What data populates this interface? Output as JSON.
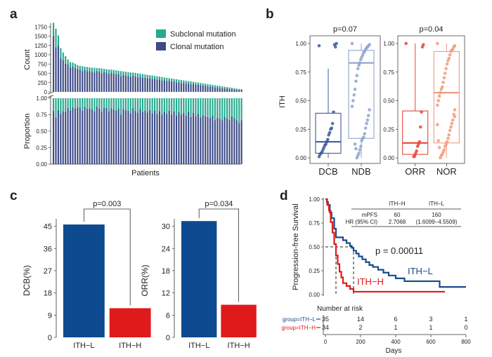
{
  "chart_data": [
    {
      "panel": "a",
      "type": "bar",
      "xlabel": "Patients",
      "legend": [
        {
          "label": "Subclonal mutation",
          "color": "#26a98e"
        },
        {
          "label": "Clonal mutation",
          "color": "#3c4a86"
        }
      ],
      "top": {
        "ylabel": "Count",
        "yticks": [
          0,
          250,
          500,
          750,
          1000,
          1250,
          1500,
          1750
        ],
        "ylim": [
          0,
          1850
        ],
        "total": [
          1860,
          1700,
          1520,
          1180,
          1060,
          960,
          870,
          800,
          790,
          760,
          720,
          700,
          690,
          680,
          670,
          660,
          650,
          650,
          640,
          640,
          630,
          620,
          610,
          600,
          600,
          590,
          580,
          570,
          560,
          550,
          540,
          530,
          520,
          520,
          510,
          500,
          490,
          480,
          470,
          460,
          450,
          440,
          430,
          420,
          410,
          400,
          390,
          380,
          370,
          360,
          350,
          340,
          330,
          320,
          310,
          300,
          290,
          280,
          270,
          260,
          250,
          240,
          230,
          220,
          210,
          200,
          190,
          180,
          170,
          160,
          150,
          140,
          130,
          120,
          110,
          100,
          90,
          80,
          75
        ],
        "clonal": [
          1500,
          1200,
          1250,
          900,
          850,
          760,
          740,
          650,
          680,
          640,
          620,
          600,
          560,
          590,
          560,
          560,
          540,
          520,
          560,
          540,
          500,
          530,
          520,
          480,
          510,
          490,
          470,
          480,
          420,
          460,
          440,
          430,
          400,
          440,
          410,
          390,
          410,
          380,
          380,
          360,
          370,
          340,
          350,
          320,
          330,
          300,
          310,
          290,
          300,
          270,
          280,
          250,
          260,
          240,
          240,
          220,
          230,
          200,
          210,
          190,
          190,
          170,
          170,
          160,
          150,
          140,
          140,
          120,
          120,
          110,
          100,
          100,
          90,
          80,
          80,
          70,
          60,
          50,
          50
        ]
      },
      "bottom": {
        "ylabel": "Proportion",
        "yticks": [
          "0.00",
          "0.25",
          "0.50",
          "0.75",
          "1.00"
        ],
        "ylim": [
          0,
          1
        ]
      }
    },
    {
      "panel": "b",
      "type": "boxplot",
      "ylabel": "ITH",
      "yticks": [
        "0.00",
        "0.25",
        "0.50",
        "0.75",
        "1.00"
      ],
      "ylim": [
        0,
        1
      ],
      "groups": [
        {
          "label": "DCB",
          "color": "#3d5a99",
          "q1": 0.04,
          "median": 0.14,
          "q3": 0.39,
          "whislo": 0.0,
          "whishi": 0.78,
          "points": [
            0.98,
            1.0,
            0.97,
            0.99,
            0.4,
            0.3,
            0.26,
            0.25,
            0.22,
            0.2,
            0.16,
            0.14,
            0.12,
            0.11,
            0.09,
            0.07,
            0.05,
            0.04,
            0.03,
            0.01
          ]
        },
        {
          "label": "NDB",
          "color": "#8fa3cc",
          "q1": 0.17,
          "median": 0.83,
          "q3": 0.94,
          "whislo": 0.0,
          "whishi": 1.0,
          "points": [
            1.0,
            0.99,
            0.98,
            0.97,
            0.96,
            0.95,
            0.93,
            0.92,
            0.9,
            0.88,
            0.86,
            0.83,
            0.81,
            0.78,
            0.72,
            0.67,
            0.6,
            0.55,
            0.5,
            0.45,
            0.42,
            0.37,
            0.33,
            0.3,
            0.26,
            0.21,
            0.18,
            0.17,
            0.15,
            0.1,
            0.07,
            0.04,
            0.02,
            0.0,
            0.08,
            0.12
          ]
        }
      ],
      "p_value": "p=0.07"
    },
    {
      "panel": "b",
      "type": "boxplot",
      "ylabel": "",
      "yticks": [
        "0.00",
        "0.25",
        "0.50",
        "0.75",
        "1.00"
      ],
      "ylim": [
        0,
        1
      ],
      "groups": [
        {
          "label": "ORR",
          "color": "#e8473a",
          "q1": 0.03,
          "median": 0.13,
          "q3": 0.41,
          "whislo": 0.0,
          "whishi": 1.0,
          "points": [
            1.0,
            0.99,
            0.97,
            0.4,
            0.27,
            0.14,
            0.12,
            0.1,
            0.06,
            0.04,
            0.02,
            0.01
          ]
        },
        {
          "label": "NOR",
          "color": "#f09a80",
          "q1": 0.13,
          "median": 0.57,
          "q3": 0.93,
          "whislo": 0.0,
          "whishi": 1.0,
          "points": [
            1.0,
            0.98,
            0.97,
            0.95,
            0.94,
            0.93,
            0.9,
            0.87,
            0.85,
            0.82,
            0.78,
            0.74,
            0.7,
            0.66,
            0.62,
            0.6,
            0.57,
            0.54,
            0.5,
            0.46,
            0.42,
            0.38,
            0.33,
            0.3,
            0.27,
            0.24,
            0.2,
            0.17,
            0.14,
            0.12,
            0.1,
            0.07,
            0.05,
            0.03,
            0.02,
            0.0,
            0.09,
            0.15,
            0.29,
            0.36
          ]
        }
      ],
      "p_value": "p=0.04"
    },
    {
      "panel": "c",
      "type": "bar",
      "ylabel": "DCB(%)",
      "categories": [
        "ITH−L",
        "ITH−H"
      ],
      "values": [
        45.7,
        11.8
      ],
      "colors": [
        "#0d4a8f",
        "#e0191a"
      ],
      "yticks": [
        0,
        9,
        18,
        27,
        36,
        45
      ],
      "ylim": [
        0,
        48
      ],
      "p_value": "p=0.003"
    },
    {
      "panel": "c",
      "type": "bar",
      "ylabel": "ORR(%)",
      "categories": [
        "ITH−L",
        "ITH−H"
      ],
      "values": [
        31.4,
        8.8
      ],
      "colors": [
        "#0d4a8f",
        "#e0191a"
      ],
      "yticks": [
        0,
        6,
        12,
        18,
        24,
        30
      ],
      "ylim": [
        0,
        32
      ],
      "p_value": "p=0.034"
    },
    {
      "panel": "d",
      "type": "line",
      "subtype": "kaplan-meier",
      "ylabel": "Progression-free Survival",
      "xlabel": "Days",
      "xticks": [
        0,
        200,
        400,
        600,
        800
      ],
      "yticks": [
        "0.00",
        "0.25",
        "0.50",
        "0.75",
        "1.00"
      ],
      "xlim": [
        0,
        800
      ],
      "ylim": [
        0,
        1
      ],
      "series": [
        {
          "name": "ITH−L",
          "color": "#1a4a8a",
          "x": [
            0,
            8,
            15,
            25,
            35,
            50,
            60,
            75,
            100,
            120,
            140,
            150,
            160,
            175,
            190,
            210,
            230,
            250,
            270,
            300,
            330,
            360,
            400,
            450,
            500,
            550,
            600,
            650,
            700,
            800
          ],
          "y": [
            1.0,
            0.97,
            0.94,
            0.86,
            0.8,
            0.69,
            0.6,
            0.6,
            0.57,
            0.54,
            0.51,
            0.49,
            0.46,
            0.43,
            0.4,
            0.37,
            0.34,
            0.31,
            0.29,
            0.26,
            0.23,
            0.2,
            0.17,
            0.14,
            0.14,
            0.14,
            0.14,
            0.08,
            0.08,
            0.08
          ]
        },
        {
          "name": "ITH−H",
          "color": "#e0191a",
          "x": [
            0,
            10,
            20,
            30,
            40,
            50,
            60,
            70,
            80,
            90,
            100,
            120,
            140,
            160,
            200,
            400,
            680
          ],
          "y": [
            1.0,
            0.94,
            0.88,
            0.76,
            0.65,
            0.53,
            0.41,
            0.32,
            0.24,
            0.18,
            0.12,
            0.09,
            0.06,
            0.03,
            0.03,
            0.03,
            0.03
          ]
        }
      ],
      "median_lines": [
        60,
        160
      ],
      "p_value": "p = 0.00011",
      "table": {
        "headers": [
          "ITH−H",
          "ITH−L"
        ],
        "rows": [
          {
            "label": "mPFS",
            "values": [
              "60",
              "160"
            ]
          },
          {
            "label": "HR (95% CI)",
            "values": [
              "2.7068",
              "(1.6099−4.5509)"
            ]
          }
        ]
      },
      "risk_table": {
        "title": "Number at risk",
        "times": [
          0,
          200,
          400,
          600,
          800
        ],
        "rows": [
          {
            "label": "group=ITH−L",
            "color": "#1a4a8a",
            "counts": [
              "35",
              "14",
              "6",
              "3",
              "1"
            ]
          },
          {
            "label": "group=ITH−H",
            "color": "#e0191a",
            "counts": [
              "34",
              "2",
              "1",
              "1",
              "0"
            ]
          }
        ]
      }
    }
  ],
  "panel_labels": [
    "a",
    "b",
    "c",
    "d"
  ]
}
